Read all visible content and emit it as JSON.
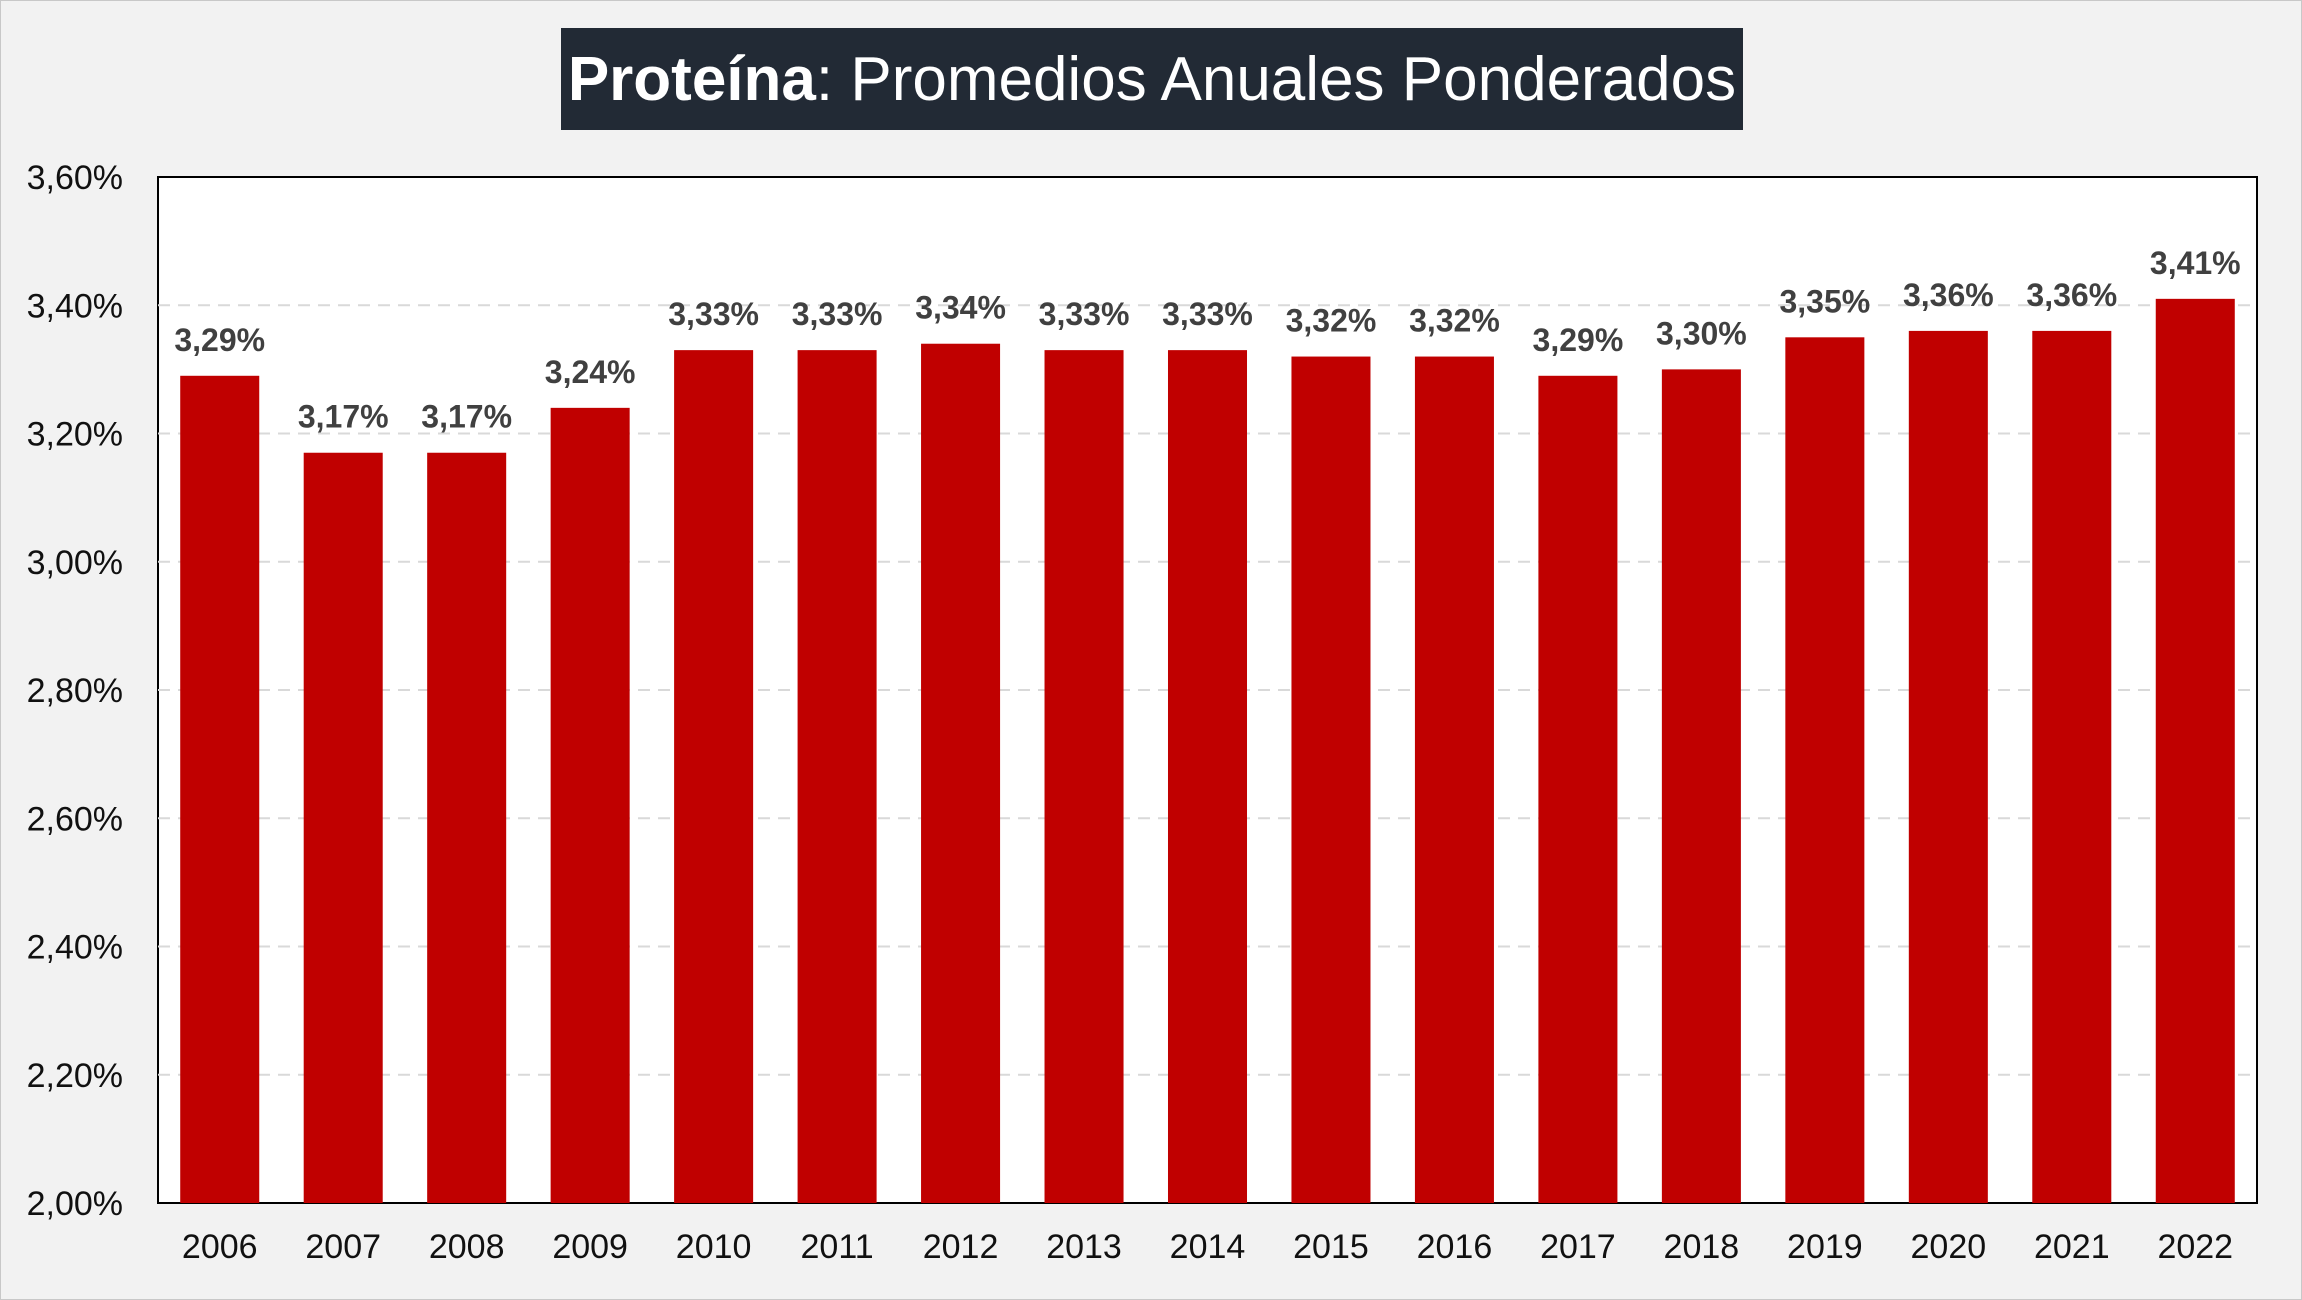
{
  "title": {
    "bold": "Proteína",
    "rest": ": Promedios Anuales Ponderados"
  },
  "colors": {
    "bar": "#c00000",
    "title_bg": "#222a35",
    "plot_bg": "#ffffff",
    "gridline": "#d9d9d9"
  },
  "chart_data": {
    "type": "bar",
    "title": "Proteína: Promedios Anuales Ponderados",
    "xlabel": "",
    "ylabel": "",
    "categories": [
      "2006",
      "2007",
      "2008",
      "2009",
      "2010",
      "2011",
      "2012",
      "2013",
      "2014",
      "2015",
      "2016",
      "2017",
      "2018",
      "2019",
      "2020",
      "2021",
      "2022"
    ],
    "values": [
      3.29,
      3.17,
      3.17,
      3.24,
      3.33,
      3.33,
      3.34,
      3.33,
      3.33,
      3.32,
      3.32,
      3.29,
      3.3,
      3.35,
      3.36,
      3.36,
      3.41
    ],
    "data_labels": [
      "3,29%",
      "3,17%",
      "3,17%",
      "3,24%",
      "3,33%",
      "3,33%",
      "3,34%",
      "3,33%",
      "3,33%",
      "3,32%",
      "3,32%",
      "3,29%",
      "3,30%",
      "3,35%",
      "3,36%",
      "3,36%",
      "3,41%"
    ],
    "ylim": [
      2.0,
      3.6
    ],
    "yticks": [
      2.0,
      2.2,
      2.4,
      2.6,
      2.8,
      3.0,
      3.2,
      3.4,
      3.6
    ],
    "ytick_labels": [
      "2,00%",
      "2,20%",
      "2,40%",
      "2,60%",
      "2,80%",
      "3,00%",
      "3,20%",
      "3,40%",
      "3,60%"
    ],
    "grid": "horizontal dashed",
    "legend": "none"
  }
}
